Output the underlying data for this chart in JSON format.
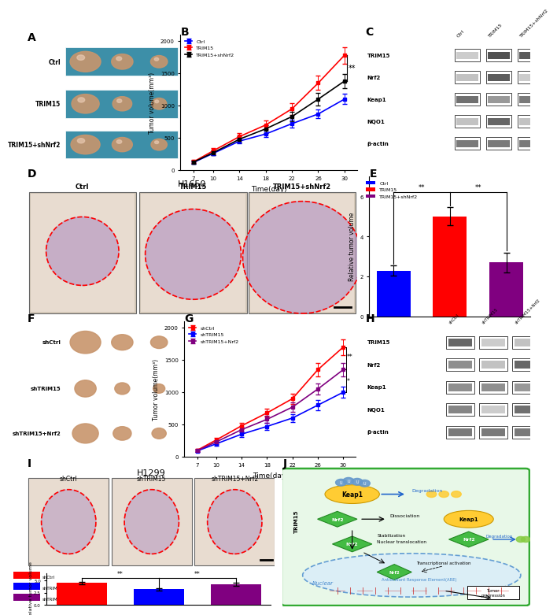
{
  "panel_B": {
    "time_points": [
      7,
      10,
      14,
      18,
      22,
      26,
      30
    ],
    "ctrl_mean": [
      120,
      260,
      450,
      560,
      720,
      870,
      1100
    ],
    "ctrl_err": [
      20,
      30,
      40,
      50,
      60,
      70,
      80
    ],
    "trim15_mean": [
      130,
      300,
      520,
      700,
      950,
      1350,
      1780
    ],
    "trim15_err": [
      25,
      40,
      55,
      70,
      90,
      110,
      130
    ],
    "trim15_shNrf2_mean": [
      125,
      270,
      480,
      640,
      830,
      1100,
      1380
    ],
    "trim15_shNrf2_err": [
      22,
      35,
      48,
      62,
      78,
      95,
      110
    ],
    "ylabel": "Tumor volume(mm³)",
    "xlabel": "Time(day)",
    "colors": {
      "ctrl": "#0000ff",
      "trim15": "#ff0000",
      "trim15_shNrf2": "#000000"
    },
    "legend": [
      "Ctrl",
      "TRIM15",
      "TRIM15+shNrf2"
    ]
  },
  "panel_E": {
    "categories": [
      "Ctrl",
      "TRIM15",
      "TRIM15+shNrf2"
    ],
    "values": [
      2.3,
      5.0,
      2.7
    ],
    "errors": [
      0.25,
      0.45,
      0.5
    ],
    "colors": [
      "#0000ff",
      "#ff0000",
      "#800080"
    ],
    "ylabel": "Relative tumor volume",
    "ylim": [
      0,
      7
    ]
  },
  "panel_G": {
    "time_points": [
      7,
      10,
      14,
      18,
      22,
      26,
      30
    ],
    "shctrl_mean": [
      100,
      260,
      480,
      680,
      900,
      1350,
      1700
    ],
    "shctrl_err": [
      20,
      30,
      50,
      60,
      80,
      100,
      120
    ],
    "shtrim15_mean": [
      90,
      200,
      350,
      470,
      600,
      800,
      1000
    ],
    "shtrim15_err": [
      18,
      28,
      40,
      50,
      60,
      75,
      90
    ],
    "shtrim15_nrf2_mean": [
      95,
      230,
      420,
      580,
      770,
      1050,
      1350
    ],
    "shtrim15_nrf2_err": [
      19,
      29,
      45,
      55,
      70,
      85,
      105
    ],
    "ylabel": "Tumor volume(mm³)",
    "xlabel": "Time(day)",
    "colors": {
      "shctrl": "#ff0000",
      "shtrim15": "#0000ff",
      "shtrim15_nrf2": "#800080"
    },
    "legend": [
      "shCtrl",
      "shTRIM15",
      "shTRIM15+Nrf2"
    ]
  },
  "panel_I_bar": {
    "categories": [
      "shCtrl",
      "shTRIM15",
      "shTRIM15+Nrf2"
    ],
    "values": [
      4.5,
      3.2,
      4.2
    ],
    "errors": [
      0.25,
      0.2,
      0.3
    ],
    "colors": [
      "#ff0000",
      "#0000ff",
      "#800080"
    ],
    "ylabel": "Relative tumor volume"
  },
  "wb_C_rows": [
    "TRIM15",
    "Nrf2",
    "Keap1",
    "NQO1",
    "β-actin"
  ],
  "wb_C_cols": [
    "Ctrl",
    "TRIM15",
    "TRIM15+shNrf2"
  ],
  "wb_C_intensities": {
    "TRIM15": [
      0.25,
      0.85,
      0.8
    ],
    "Nrf2": [
      0.3,
      0.8,
      0.25
    ],
    "Keap1": [
      0.7,
      0.5,
      0.65
    ],
    "NQO1": [
      0.3,
      0.75,
      0.3
    ],
    "β-actin": [
      0.65,
      0.65,
      0.65
    ]
  },
  "wb_H_rows": [
    "TRIM15",
    "Nrf2",
    "Keap1",
    "NQO1",
    "β-actin"
  ],
  "wb_H_cols": [
    "shCtrl",
    "shTRIM15",
    "shTRIM15+Nrf2"
  ],
  "wb_H_intensities": {
    "TRIM15": [
      0.75,
      0.25,
      0.3
    ],
    "Nrf2": [
      0.55,
      0.3,
      0.75
    ],
    "Keap1": [
      0.55,
      0.55,
      0.5
    ],
    "NQO1": [
      0.6,
      0.25,
      0.7
    ],
    "β-actin": [
      0.65,
      0.65,
      0.65
    ]
  },
  "label_fontsize": 10,
  "bg_blue": "#3d8fa8",
  "tumor_color": "#c8956c",
  "tumor_highlight": "#e8c8b0"
}
